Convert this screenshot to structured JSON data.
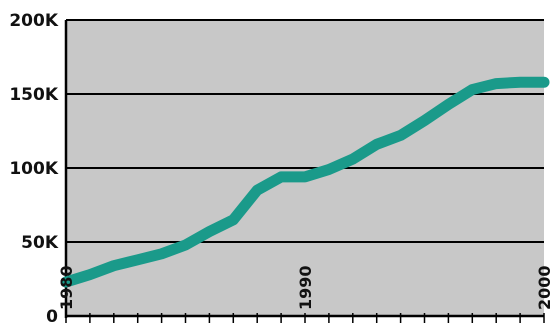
{
  "chart_data": {
    "type": "line",
    "title": "",
    "xlabel": "",
    "ylabel": "",
    "xlim": [
      1980,
      2000
    ],
    "ylim": [
      0,
      200000
    ],
    "grid": "horizontal",
    "legend": "none",
    "y_ticks": [
      {
        "value": 0,
        "label": "0"
      },
      {
        "value": 50000,
        "label": "50K"
      },
      {
        "value": 100000,
        "label": "100K"
      },
      {
        "value": 150000,
        "label": "150K"
      },
      {
        "value": 200000,
        "label": "200K"
      }
    ],
    "x_ticks": [
      {
        "value": 1980,
        "label": "1980"
      },
      {
        "value": 1990,
        "label": "1990"
      },
      {
        "value": 2000,
        "label": "2000"
      }
    ],
    "series": [
      {
        "name": "",
        "color": "#1a9a8a",
        "x": [
          1980,
          1981,
          1982,
          1983,
          1984,
          1985,
          1986,
          1987,
          1988,
          1989,
          1990,
          1991,
          1992,
          1993,
          1994,
          1995,
          1996,
          1997,
          1998,
          1999,
          2000
        ],
        "y": [
          23000,
          28000,
          34000,
          38000,
          42000,
          48000,
          57000,
          65000,
          85000,
          94000,
          94000,
          99000,
          106000,
          116000,
          122000,
          132000,
          143000,
          153000,
          157000,
          158000,
          158000
        ]
      }
    ]
  },
  "colors": {
    "plot_background": "#c8c8c8",
    "gridline": "#000000",
    "axis": "#000000"
  }
}
